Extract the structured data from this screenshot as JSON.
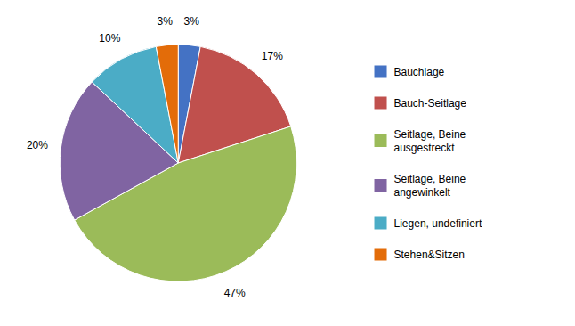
{
  "chart_data": {
    "type": "pie",
    "categories": [
      "Bauchlage",
      "Bauch-Seitlage",
      "Seitlage, Beine\nausgestreckt",
      "Seitlage, Beine\nangewinkelt",
      "Liegen, undefiniert",
      "Stehen&Sitzen"
    ],
    "values": [
      3,
      17,
      47,
      20,
      10,
      3
    ],
    "value_labels": [
      "3%",
      "17%",
      "47%",
      "20%",
      "10%",
      "3%"
    ],
    "colors": [
      "#4472c4",
      "#c0504d",
      "#9bbb59",
      "#8064a2",
      "#4bacc6",
      "#e36c09"
    ],
    "data_labels": true,
    "legend": "right"
  }
}
